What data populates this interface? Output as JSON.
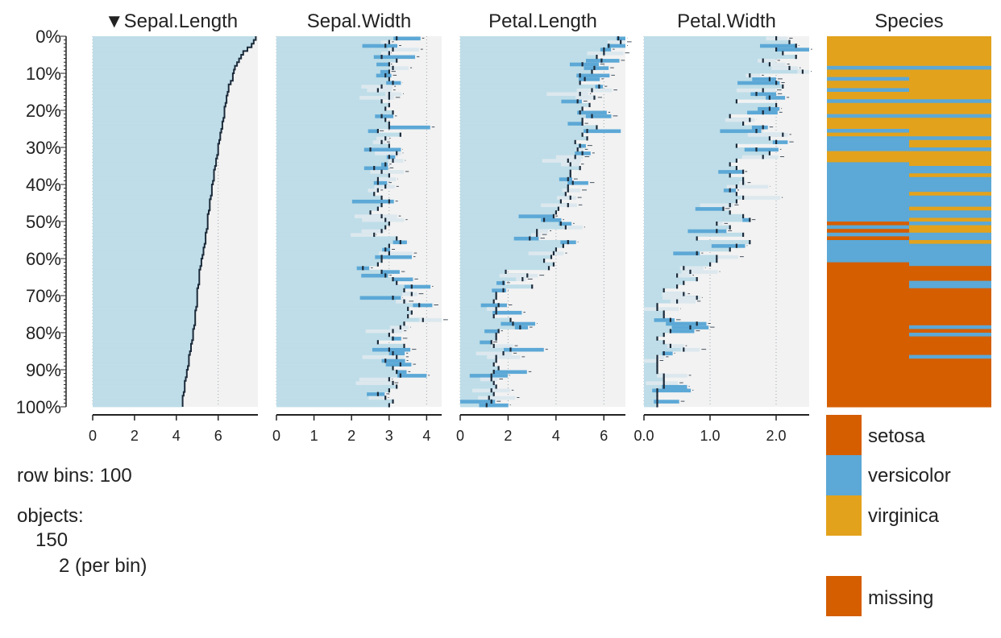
{
  "chart_data": {
    "type": "tableplot",
    "row_bins": 100,
    "sort_indicator": "▼",
    "y_ticks": [
      "0%",
      "10%",
      "20%",
      "30%",
      "40%",
      "50%",
      "60%",
      "70%",
      "80%",
      "90%",
      "100%"
    ],
    "columns": [
      {
        "name": "Sepal.Length",
        "sorted": true,
        "xlim": [
          0,
          7.9
        ],
        "ticks": [
          "0",
          "2",
          "4",
          "6"
        ],
        "tick_values": [
          0,
          2,
          4,
          6
        ],
        "means": [
          7.8,
          7.7,
          7.6,
          7.4,
          7.2,
          7.1,
          7.0,
          6.9,
          6.8,
          6.75,
          6.7,
          6.7,
          6.6,
          6.5,
          6.5,
          6.45,
          6.4,
          6.4,
          6.35,
          6.3,
          6.3,
          6.3,
          6.25,
          6.2,
          6.2,
          6.15,
          6.1,
          6.1,
          6.05,
          6.0,
          6.0,
          6.0,
          5.95,
          5.9,
          5.9,
          5.85,
          5.8,
          5.8,
          5.8,
          5.75,
          5.7,
          5.7,
          5.7,
          5.65,
          5.6,
          5.6,
          5.6,
          5.55,
          5.5,
          5.5,
          5.5,
          5.5,
          5.45,
          5.4,
          5.4,
          5.4,
          5.35,
          5.3,
          5.3,
          5.25,
          5.2,
          5.2,
          5.15,
          5.1,
          5.1,
          5.1,
          5.1,
          5.05,
          5.0,
          5.0,
          5.0,
          5.0,
          5.0,
          4.95,
          4.9,
          4.9,
          4.9,
          4.9,
          4.85,
          4.8,
          4.8,
          4.8,
          4.75,
          4.7,
          4.7,
          4.65,
          4.6,
          4.6,
          4.6,
          4.55,
          4.5,
          4.5,
          4.45,
          4.4,
          4.4,
          4.4,
          4.35,
          4.3,
          4.3,
          4.3
        ]
      },
      {
        "name": "Sepal.Width",
        "sorted": false,
        "xlim": [
          0,
          4.4
        ],
        "ticks": [
          "0",
          "1",
          "2",
          "3",
          "4"
        ],
        "tick_values": [
          0,
          1,
          2,
          3,
          4
        ],
        "means": [
          3.2,
          3.0,
          2.9,
          3.1,
          3.0,
          2.8,
          3.2,
          3.0,
          3.1,
          3.0,
          2.9,
          3.0,
          3.1,
          2.8,
          2.7,
          3.0,
          3.0,
          2.8,
          3.0,
          2.9,
          3.1,
          2.8,
          2.9,
          3.0,
          3.0,
          2.7,
          3.3,
          2.9,
          2.8,
          3.0,
          2.5,
          3.2,
          3.0,
          3.1,
          2.9,
          2.6,
          2.8,
          3.0,
          2.7,
          2.7,
          2.9,
          2.7,
          2.6,
          2.8,
          3.0,
          2.8,
          2.7,
          2.5,
          2.8,
          2.9,
          3.0,
          2.9,
          2.8,
          2.6,
          3.2,
          3.3,
          3.0,
          2.9,
          3.0,
          2.8,
          2.8,
          2.7,
          2.3,
          2.8,
          2.9,
          3.1,
          3.2,
          3.6,
          3.4,
          3.6,
          3.1,
          3.4,
          3.8,
          3.5,
          3.6,
          3.5,
          3.9,
          3.4,
          3.3,
          3.1,
          3.0,
          3.1,
          2.7,
          3.4,
          3.0,
          3.1,
          3.2,
          2.9,
          3.3,
          3.1,
          3.2,
          3.3,
          3.0,
          3.1,
          3.2,
          3.0,
          2.7,
          2.9,
          3.1,
          3.0
        ]
      },
      {
        "name": "Petal.Length",
        "sorted": false,
        "xlim": [
          0,
          6.9
        ],
        "ticks": [
          "0",
          "2",
          "4",
          "6"
        ],
        "tick_values": [
          0,
          2,
          4,
          6
        ],
        "means": [
          6.6,
          6.7,
          6.2,
          6.0,
          6.0,
          5.7,
          5.9,
          5.1,
          5.6,
          5.5,
          5.0,
          5.2,
          5.0,
          5.8,
          5.5,
          5.0,
          5.6,
          4.9,
          5.4,
          5.1,
          5.0,
          5.5,
          5.1,
          5.1,
          5.7,
          5.3,
          5.1,
          5.3,
          4.8,
          5.0,
          4.9,
          5.1,
          4.8,
          4.5,
          4.6,
          5.0,
          4.6,
          4.6,
          4.5,
          4.7,
          4.5,
          4.5,
          4.4,
          4.6,
          4.2,
          4.5,
          4.1,
          4.0,
          3.9,
          3.5,
          4.2,
          4.4,
          3.2,
          3.2,
          2.9,
          4.5,
          4.3,
          4.0,
          3.9,
          3.8,
          3.5,
          3.9,
          3.7,
          1.9,
          2.8,
          2.6,
          1.8,
          3.0,
          1.8,
          1.5,
          1.5,
          1.4,
          1.6,
          1.5,
          1.5,
          1.4,
          2.1,
          2.2,
          2.5,
          1.6,
          1.5,
          1.5,
          1.3,
          1.4,
          2.1,
          1.8,
          1.5,
          1.5,
          1.4,
          1.6,
          1.4,
          1.3,
          1.3,
          1.4,
          1.5,
          1.3,
          1.4,
          1.2,
          1.3,
          1.1
        ]
      },
      {
        "name": "Petal.Width",
        "sorted": false,
        "xlim": [
          0,
          2.5
        ],
        "ticks": [
          "0.0",
          "1.0",
          "2.0"
        ],
        "tick_values": [
          0,
          1,
          2
        ],
        "means": [
          2.0,
          2.2,
          2.3,
          2.0,
          2.1,
          2.3,
          1.8,
          1.9,
          2.2,
          2.4,
          1.6,
          1.9,
          2.0,
          2.1,
          1.8,
          1.7,
          1.9,
          1.4,
          2.0,
          1.9,
          1.8,
          1.3,
          1.6,
          1.5,
          1.8,
          1.7,
          2.1,
          1.9,
          2.0,
          1.4,
          1.7,
          1.9,
          1.8,
          1.4,
          1.3,
          1.4,
          1.5,
          1.3,
          1.5,
          1.5,
          1.4,
          1.3,
          1.4,
          1.5,
          1.4,
          1.3,
          1.2,
          1.3,
          1.5,
          1.6,
          1.1,
          1.3,
          1.1,
          1.5,
          0.8,
          1.6,
          1.4,
          1.3,
          0.8,
          1.1,
          1.1,
          1.0,
          0.6,
          0.7,
          0.5,
          0.8,
          0.6,
          0.5,
          0.3,
          0.6,
          0.8,
          0.5,
          0.2,
          0.2,
          0.3,
          0.3,
          0.4,
          0.8,
          0.7,
          0.4,
          0.3,
          0.2,
          0.3,
          0.4,
          0.6,
          0.3,
          0.2,
          0.2,
          0.2,
          0.2,
          0.2,
          0.3,
          0.3,
          0.3,
          0.3,
          0.2,
          0.2,
          0.2,
          0.2,
          0.2
        ]
      }
    ],
    "categorical": {
      "name": "Species",
      "categories": [
        "setosa",
        "versicolor",
        "virginica"
      ],
      "colors": [
        "#D55E00",
        "#5CA8D6",
        "#E3A21C"
      ],
      "proportions": [
        [
          0,
          0,
          1
        ],
        [
          0,
          0,
          1
        ],
        [
          0,
          0,
          1
        ],
        [
          0,
          0,
          1
        ],
        [
          0,
          0,
          1
        ],
        [
          0,
          0,
          1
        ],
        [
          0,
          0,
          1
        ],
        [
          0,
          0,
          1
        ],
        [
          0,
          1,
          0
        ],
        [
          0,
          0,
          1
        ],
        [
          0,
          0,
          1
        ],
        [
          0,
          0.5,
          0.5
        ],
        [
          0,
          0,
          1
        ],
        [
          0,
          0,
          1
        ],
        [
          0,
          0.5,
          0.5
        ],
        [
          0,
          0,
          1
        ],
        [
          0,
          0,
          1
        ],
        [
          0,
          1,
          0
        ],
        [
          0,
          0,
          1
        ],
        [
          0,
          0,
          1
        ],
        [
          0,
          0,
          1
        ],
        [
          0,
          1,
          0
        ],
        [
          0,
          0,
          1
        ],
        [
          0,
          0,
          1
        ],
        [
          0,
          0,
          1
        ],
        [
          0,
          0.5,
          0.5
        ],
        [
          0,
          0,
          1
        ],
        [
          0,
          1,
          0
        ],
        [
          0,
          0.5,
          0.5
        ],
        [
          0,
          0.5,
          0.5
        ],
        [
          0,
          1,
          0
        ],
        [
          0,
          0,
          1
        ],
        [
          0,
          0,
          1
        ],
        [
          0,
          0,
          1
        ],
        [
          0,
          0.5,
          0.5
        ],
        [
          0,
          1,
          0
        ],
        [
          0,
          1,
          0
        ],
        [
          0,
          0.5,
          0.5
        ],
        [
          0,
          1,
          0
        ],
        [
          0,
          1,
          0
        ],
        [
          0,
          1,
          0
        ],
        [
          0,
          1,
          0
        ],
        [
          0,
          0.5,
          0.5
        ],
        [
          0,
          1,
          0
        ],
        [
          0,
          1,
          0
        ],
        [
          0,
          1,
          0
        ],
        [
          0,
          0.5,
          0.5
        ],
        [
          0,
          1,
          0
        ],
        [
          0,
          1,
          0
        ],
        [
          0,
          0.5,
          0.5
        ],
        [
          0.5,
          0.5,
          0
        ],
        [
          0,
          0.5,
          0.5
        ],
        [
          0.5,
          0,
          0.5
        ],
        [
          0,
          1,
          0
        ],
        [
          0.5,
          0.5,
          0
        ],
        [
          0,
          0.5,
          0.5
        ],
        [
          0,
          1,
          0
        ],
        [
          0,
          1,
          0
        ],
        [
          0,
          1,
          0
        ],
        [
          0,
          1,
          0
        ],
        [
          0,
          1,
          0
        ],
        [
          0.5,
          0.5,
          0
        ],
        [
          1,
          0,
          0
        ],
        [
          1,
          0,
          0
        ],
        [
          1,
          0,
          0
        ],
        [
          1,
          0,
          0
        ],
        [
          0.5,
          0.5,
          0
        ],
        [
          0.5,
          0.5,
          0
        ],
        [
          1,
          0,
          0
        ],
        [
          1,
          0,
          0
        ],
        [
          1,
          0,
          0
        ],
        [
          1,
          0,
          0
        ],
        [
          1,
          0,
          0
        ],
        [
          1,
          0,
          0
        ],
        [
          1,
          0,
          0
        ],
        [
          1,
          0,
          0
        ],
        [
          1,
          0,
          0
        ],
        [
          1,
          0,
          0
        ],
        [
          0.5,
          0.5,
          0
        ],
        [
          1,
          0,
          0
        ],
        [
          0.5,
          0.5,
          0
        ],
        [
          1,
          0,
          0
        ],
        [
          1,
          0,
          0
        ],
        [
          1,
          0,
          0
        ],
        [
          1,
          0,
          0
        ],
        [
          1,
          0,
          0
        ],
        [
          0.5,
          0.5,
          0
        ],
        [
          1,
          0,
          0
        ],
        [
          1,
          0,
          0
        ],
        [
          1,
          0,
          0
        ],
        [
          1,
          0,
          0
        ],
        [
          1,
          0,
          0
        ],
        [
          1,
          0,
          0
        ],
        [
          1,
          0,
          0
        ],
        [
          1,
          0,
          0
        ],
        [
          1,
          0,
          0
        ],
        [
          1,
          0,
          0
        ],
        [
          1,
          0,
          0
        ],
        [
          1,
          0,
          0
        ],
        [
          1,
          0,
          0
        ]
      ]
    },
    "colors": {
      "bar": "#BEDDE8",
      "bar_dark": "#5CA8D6",
      "bar_light": "#DCE8EE",
      "background": "#F2F2F2",
      "line": "#1B2A3A",
      "missing": "#D55E00"
    }
  },
  "legend": {
    "items": [
      "setosa",
      "versicolor",
      "virginica"
    ],
    "missing_label": "missing"
  },
  "info": {
    "row_bins_label": "row bins: 100",
    "objects_label": "objects:",
    "objects_count": "150",
    "per_bin": "2 (per bin)"
  }
}
